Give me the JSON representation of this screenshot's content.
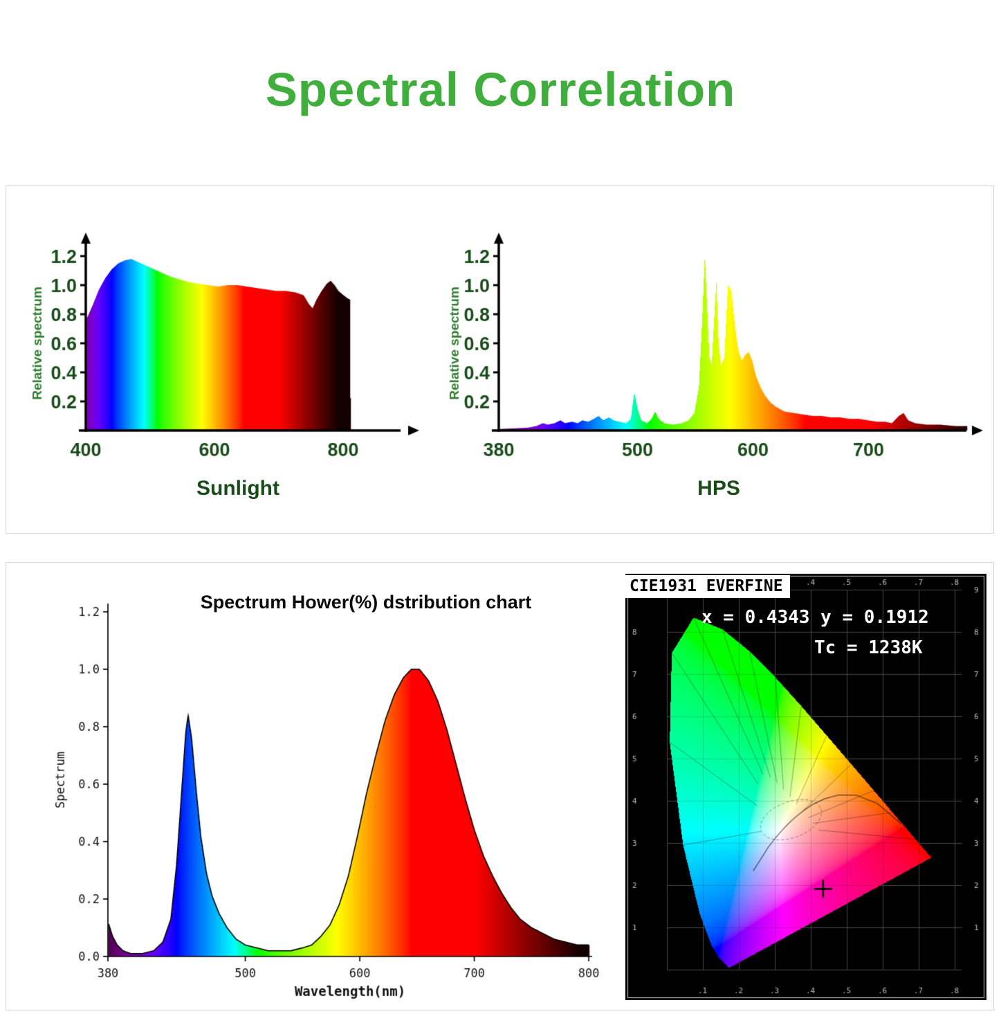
{
  "title": "Spectral Correlation",
  "colors": {
    "accent_green": "#3fae3c",
    "label_green": "#194c19",
    "ylabel_green": "#2f7d2f"
  },
  "chart_data": [
    {
      "id": "sunlight",
      "type": "area",
      "title": "Sunlight",
      "ylabel": "Relative spectrum",
      "xlabel": "",
      "xlim": [
        400,
        830
      ],
      "ylim": [
        0,
        1.3
      ],
      "x_ticks": [
        "400",
        "600",
        "800"
      ],
      "y_ticks": [
        "0.2",
        "0.4",
        "0.6",
        "0.8",
        "1.0",
        "1.2"
      ],
      "color_mode": "wavelength-gradient",
      "points": [
        [
          400,
          0.76
        ],
        [
          410,
          0.86
        ],
        [
          420,
          0.97
        ],
        [
          430,
          1.05
        ],
        [
          440,
          1.11
        ],
        [
          450,
          1.15
        ],
        [
          460,
          1.17
        ],
        [
          470,
          1.18
        ],
        [
          480,
          1.16
        ],
        [
          490,
          1.14
        ],
        [
          500,
          1.12
        ],
        [
          515,
          1.09
        ],
        [
          530,
          1.06
        ],
        [
          545,
          1.04
        ],
        [
          560,
          1.02
        ],
        [
          575,
          1.01
        ],
        [
          590,
          1.0
        ],
        [
          605,
          0.99
        ],
        [
          620,
          1.0
        ],
        [
          635,
          1.0
        ],
        [
          650,
          0.99
        ],
        [
          665,
          0.98
        ],
        [
          680,
          0.97
        ],
        [
          695,
          0.96
        ],
        [
          710,
          0.96
        ],
        [
          725,
          0.95
        ],
        [
          738,
          0.93
        ],
        [
          746,
          0.87
        ],
        [
          752,
          0.84
        ],
        [
          758,
          0.9
        ],
        [
          766,
          0.96
        ],
        [
          774,
          1.01
        ],
        [
          780,
          1.03
        ],
        [
          786,
          1.0
        ],
        [
          792,
          0.96
        ],
        [
          800,
          0.93
        ],
        [
          806,
          0.91
        ],
        [
          810,
          0.9
        ],
        [
          811,
          0
        ]
      ]
    },
    {
      "id": "hps",
      "type": "area",
      "title": "HPS",
      "ylabel": "Relative spectrum",
      "xlabel": "",
      "xlim": [
        380,
        790
      ],
      "ylim": [
        0,
        1.3
      ],
      "x_ticks": [
        "380",
        "500",
        "600",
        "700"
      ],
      "y_ticks": [
        "0.2",
        "0.4",
        "0.6",
        "0.8",
        "1.0",
        "1.2"
      ],
      "color_mode": "wavelength-gradient",
      "points": [
        [
          380,
          0.01
        ],
        [
          395,
          0.015
        ],
        [
          405,
          0.02
        ],
        [
          412,
          0.03
        ],
        [
          418,
          0.05
        ],
        [
          422,
          0.04
        ],
        [
          428,
          0.05
        ],
        [
          433,
          0.07
        ],
        [
          437,
          0.05
        ],
        [
          443,
          0.06
        ],
        [
          448,
          0.05
        ],
        [
          452,
          0.07
        ],
        [
          457,
          0.06
        ],
        [
          462,
          0.08
        ],
        [
          466,
          0.1
        ],
        [
          470,
          0.07
        ],
        [
          475,
          0.09
        ],
        [
          479,
          0.07
        ],
        [
          484,
          0.06
        ],
        [
          490,
          0.05
        ],
        [
          494,
          0.08
        ],
        [
          497,
          0.26
        ],
        [
          500,
          0.14
        ],
        [
          503,
          0.07
        ],
        [
          508,
          0.05
        ],
        [
          512,
          0.08
        ],
        [
          515,
          0.13
        ],
        [
          518,
          0.08
        ],
        [
          523,
          0.05
        ],
        [
          530,
          0.04
        ],
        [
          538,
          0.05
        ],
        [
          544,
          0.07
        ],
        [
          549,
          0.12
        ],
        [
          553,
          0.3
        ],
        [
          556,
          0.8
        ],
        [
          558,
          1.2
        ],
        [
          560,
          0.85
        ],
        [
          562,
          0.5
        ],
        [
          564,
          0.45
        ],
        [
          566,
          0.75
        ],
        [
          568,
          1.02
        ],
        [
          570,
          0.6
        ],
        [
          572,
          0.45
        ],
        [
          575,
          0.5
        ],
        [
          578,
          1.0
        ],
        [
          581,
          0.96
        ],
        [
          584,
          0.72
        ],
        [
          587,
          0.55
        ],
        [
          590,
          0.48
        ],
        [
          593,
          0.52
        ],
        [
          596,
          0.54
        ],
        [
          599,
          0.48
        ],
        [
          602,
          0.38
        ],
        [
          606,
          0.3
        ],
        [
          610,
          0.24
        ],
        [
          615,
          0.19
        ],
        [
          620,
          0.16
        ],
        [
          627,
          0.13
        ],
        [
          635,
          0.12
        ],
        [
          643,
          0.11
        ],
        [
          651,
          0.1
        ],
        [
          659,
          0.1
        ],
        [
          667,
          0.09
        ],
        [
          675,
          0.09
        ],
        [
          683,
          0.08
        ],
        [
          691,
          0.08
        ],
        [
          699,
          0.07
        ],
        [
          707,
          0.06
        ],
        [
          714,
          0.06
        ],
        [
          720,
          0.05
        ],
        [
          726,
          0.1
        ],
        [
          730,
          0.12
        ],
        [
          734,
          0.07
        ],
        [
          740,
          0.05
        ],
        [
          750,
          0.04
        ],
        [
          762,
          0.04
        ],
        [
          775,
          0.03
        ],
        [
          785,
          0.03
        ]
      ]
    },
    {
      "id": "led",
      "type": "area",
      "title": "Spectrum Hower(%) dstribution chart",
      "xlabel": "Wavelength(nm)",
      "ylabel": "Spectrum",
      "xlim": [
        380,
        800
      ],
      "ylim": [
        0,
        1.2
      ],
      "x_ticks": [
        "380",
        "500",
        "600",
        "700",
        "800"
      ],
      "y_ticks": [
        "0.0",
        "0.2",
        "0.4",
        "0.6",
        "0.8",
        "1.0",
        "1.2"
      ],
      "color_mode": "wavelength-gradient",
      "points": [
        [
          380,
          0.12
        ],
        [
          384,
          0.07
        ],
        [
          388,
          0.04
        ],
        [
          393,
          0.02
        ],
        [
          400,
          0.01
        ],
        [
          410,
          0.01
        ],
        [
          420,
          0.02
        ],
        [
          428,
          0.05
        ],
        [
          435,
          0.13
        ],
        [
          440,
          0.32
        ],
        [
          444,
          0.55
        ],
        [
          448,
          0.78
        ],
        [
          450,
          0.84
        ],
        [
          453,
          0.76
        ],
        [
          457,
          0.58
        ],
        [
          461,
          0.42
        ],
        [
          466,
          0.29
        ],
        [
          471,
          0.21
        ],
        [
          477,
          0.15
        ],
        [
          484,
          0.1
        ],
        [
          492,
          0.06
        ],
        [
          500,
          0.04
        ],
        [
          510,
          0.03
        ],
        [
          520,
          0.02
        ],
        [
          530,
          0.02
        ],
        [
          540,
          0.02
        ],
        [
          550,
          0.03
        ],
        [
          558,
          0.04
        ],
        [
          566,
          0.07
        ],
        [
          574,
          0.11
        ],
        [
          582,
          0.18
        ],
        [
          590,
          0.28
        ],
        [
          598,
          0.42
        ],
        [
          606,
          0.57
        ],
        [
          614,
          0.7
        ],
        [
          622,
          0.82
        ],
        [
          630,
          0.91
        ],
        [
          638,
          0.97
        ],
        [
          645,
          1.0
        ],
        [
          652,
          1.0
        ],
        [
          660,
          0.96
        ],
        [
          668,
          0.89
        ],
        [
          676,
          0.79
        ],
        [
          684,
          0.67
        ],
        [
          692,
          0.55
        ],
        [
          700,
          0.44
        ],
        [
          708,
          0.35
        ],
        [
          716,
          0.28
        ],
        [
          724,
          0.22
        ],
        [
          732,
          0.17
        ],
        [
          740,
          0.13
        ],
        [
          750,
          0.1
        ],
        [
          760,
          0.08
        ],
        [
          770,
          0.06
        ],
        [
          780,
          0.05
        ],
        [
          790,
          0.04
        ],
        [
          800,
          0.04
        ]
      ]
    },
    {
      "id": "cie1931",
      "type": "heatmap",
      "header": "CIE1931 EVERFINE",
      "annotation_xy": "x = 0.4343 y = 0.1912",
      "annotation_tc": "Tc = 1238K",
      "marker": {
        "x": 0.4343,
        "y": 0.1912
      },
      "x_ticks": [
        ".1",
        ".2",
        ".3",
        ".4",
        ".5",
        ".6",
        ".7",
        ".8"
      ],
      "y_ticks": [
        "1",
        "2",
        "3",
        "4",
        "5",
        "6",
        "7",
        "8",
        "9"
      ]
    }
  ]
}
